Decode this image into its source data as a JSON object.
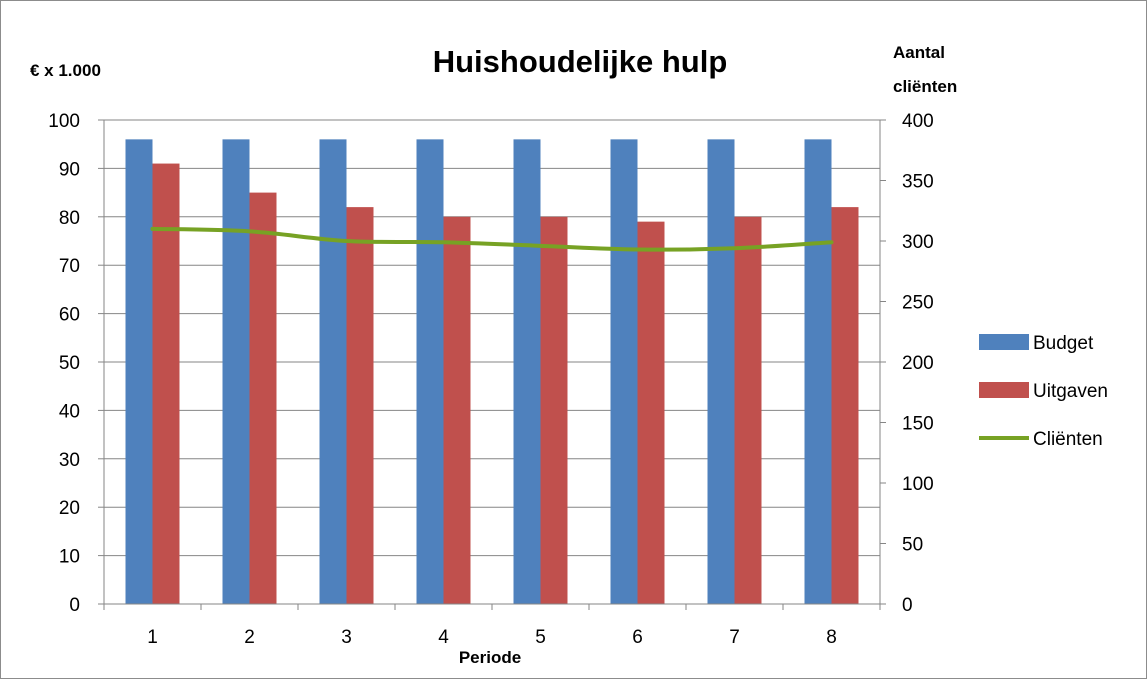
{
  "chart_data": {
    "type": "bar",
    "title": "Huishoudelijke hulp",
    "xlabel": "Periode",
    "ylabel": "€ x 1.000",
    "y2label": [
      "Aantal",
      "cliënten"
    ],
    "categories": [
      "1",
      "2",
      "3",
      "4",
      "5",
      "6",
      "7",
      "8"
    ],
    "ylim": [
      0,
      100
    ],
    "y2lim": [
      0,
      400
    ],
    "yticks": [
      0,
      10,
      20,
      30,
      40,
      50,
      60,
      70,
      80,
      90,
      100
    ],
    "y2ticks": [
      0,
      50,
      100,
      150,
      200,
      250,
      300,
      350,
      400
    ],
    "grid": true,
    "legend_position": "right",
    "series": [
      {
        "name": "Budget",
        "type": "bar",
        "axis": "left",
        "color": "#4f81bd",
        "values": [
          96,
          96,
          96,
          96,
          96,
          96,
          96,
          96
        ]
      },
      {
        "name": "Uitgaven",
        "type": "bar",
        "axis": "left",
        "color": "#c0504d",
        "values": [
          91,
          85,
          82,
          80,
          80,
          79,
          80,
          82
        ]
      },
      {
        "name": "Cliënten",
        "type": "line",
        "axis": "right",
        "color": "#77a224",
        "values": [
          310,
          308,
          300,
          299,
          296,
          293,
          294,
          299
        ]
      }
    ]
  }
}
